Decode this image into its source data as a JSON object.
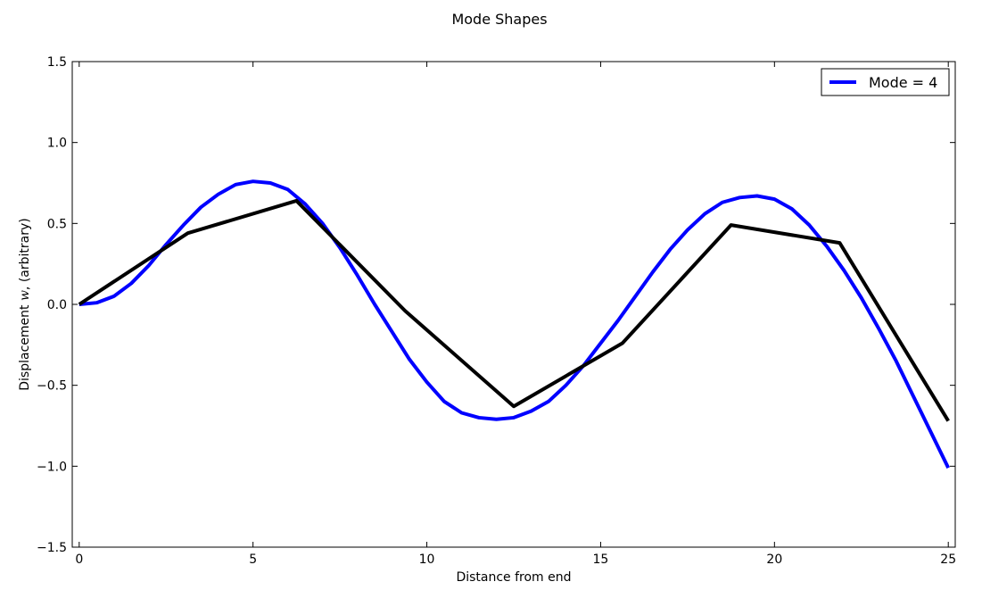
{
  "chart_data": {
    "type": "line",
    "title": "Mode Shapes",
    "xlabel": "Distance from end",
    "ylabel_prefix": "Displacement ",
    "ylabel_var": "w",
    "ylabel_suffix": ", (arbitrary)",
    "xlim": [
      -0.2,
      25.2
    ],
    "ylim": [
      -1.5,
      1.5
    ],
    "xticks": [
      0,
      5,
      10,
      15,
      20,
      25
    ],
    "yticks": [
      -1.5,
      -1.0,
      -0.5,
      0.0,
      0.5,
      1.0,
      1.5
    ],
    "ytick_labels": [
      "−1.5",
      "−1.0",
      "−0.5",
      "0.0",
      "0.5",
      "1.0",
      "1.5"
    ],
    "grid": false,
    "legend_position": "top-right",
    "series": [
      {
        "name": "Mode = 4",
        "color": "#0000ff",
        "style": "smooth",
        "x": [
          0,
          0.5,
          1,
          1.5,
          2,
          2.5,
          3,
          3.5,
          4,
          4.5,
          5,
          5.5,
          6,
          6.5,
          7,
          7.5,
          8,
          8.5,
          9,
          9.5,
          10,
          10.5,
          11,
          11.5,
          12,
          12.5,
          13,
          13.5,
          14,
          14.5,
          15,
          15.5,
          16,
          16.5,
          17,
          17.5,
          18,
          18.5,
          19,
          19.5,
          20,
          20.5,
          21,
          21.5,
          22,
          22.5,
          23,
          23.5,
          24,
          24.5,
          25
        ],
        "y": [
          0.0,
          0.01,
          0.05,
          0.13,
          0.24,
          0.37,
          0.49,
          0.6,
          0.68,
          0.74,
          0.76,
          0.75,
          0.71,
          0.62,
          0.5,
          0.35,
          0.18,
          0.0,
          -0.17,
          -0.34,
          -0.48,
          -0.6,
          -0.67,
          -0.7,
          -0.71,
          -0.7,
          -0.66,
          -0.6,
          -0.5,
          -0.38,
          -0.24,
          -0.1,
          0.05,
          0.2,
          0.34,
          0.46,
          0.56,
          0.63,
          0.66,
          0.67,
          0.65,
          0.59,
          0.49,
          0.36,
          0.21,
          0.04,
          -0.15,
          -0.35,
          -0.57,
          -0.79,
          -1.01
        ]
      },
      {
        "name": "",
        "color": "#000000",
        "style": "linear",
        "x": [
          0,
          3.125,
          6.25,
          9.375,
          12.5,
          15.625,
          18.75,
          21.875,
          25
        ],
        "y": [
          0.0,
          0.44,
          0.64,
          -0.04,
          -0.63,
          -0.24,
          0.49,
          0.38,
          -0.72
        ]
      }
    ]
  }
}
